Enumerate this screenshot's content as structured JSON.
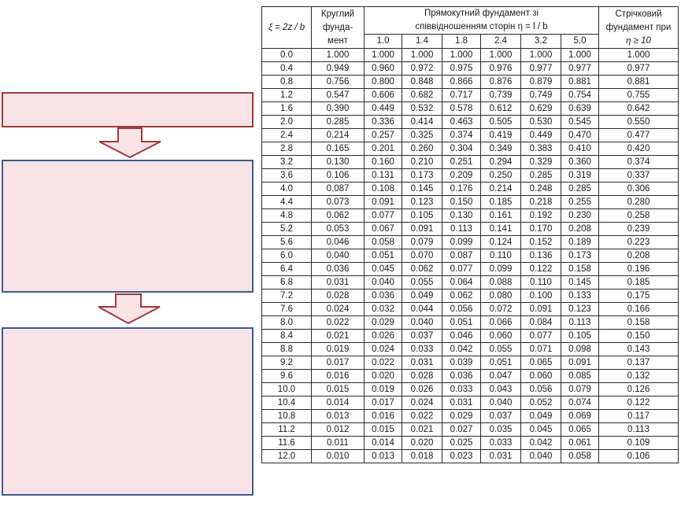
{
  "table": {
    "header": {
      "xi_label": "ξ = 2z / b",
      "round_label_line1": "Круглий",
      "round_label_line2": "фунда-",
      "round_label_line3": "мент",
      "rect_label_line1": "Прямокутний фундамент зі",
      "rect_label_line2": "співвідношенням сторін η =  l / b",
      "strip_label_line1": "Стрічковий",
      "strip_label_line2": "фундамент при",
      "strip_label_line3": "η  ≥ 10",
      "eta_values": [
        "1.0",
        "1.4",
        "1.8",
        "2.4",
        "3.2",
        "5.0"
      ]
    },
    "rows": [
      [
        "0.0",
        "1.000",
        "1.000",
        "1.000",
        "1.000",
        "1.000",
        "1.000",
        "1.000",
        "1.000"
      ],
      [
        "0.4",
        "0.949",
        "0.960",
        "0.972",
        "0.975",
        "0.976",
        "0.977",
        "0.977",
        "0.977"
      ],
      [
        "0.8",
        "0.756",
        "0.800",
        "0.848",
        "0.866",
        "0.876",
        "0.879",
        "0.881",
        "0.881"
      ],
      [
        "1.2",
        "0.547",
        "0.606",
        "0.682",
        "0.717",
        "0.739",
        "0.749",
        "0.754",
        "0.755"
      ],
      [
        "1.6",
        "0.390",
        "0.449",
        "0.532",
        "0.578",
        "0.612",
        "0.629",
        "0.639",
        "0.642"
      ],
      [
        "2.0",
        "0.285",
        "0.336",
        "0.414",
        "0.463",
        "0.505",
        "0.530",
        "0.545",
        "0.550"
      ],
      [
        "2.4",
        "0.214",
        "0.257",
        "0.325",
        "0.374",
        "0.419",
        "0.449",
        "0.470",
        "0.477"
      ],
      [
        "2.8",
        "0.165",
        "0.201",
        "0.260",
        "0.304",
        "0.349",
        "0.383",
        "0.410",
        "0.420"
      ],
      [
        "3.2",
        "0.130",
        "0.160",
        "0.210",
        "0.251",
        "0.294",
        "0.329",
        "0.360",
        "0.374"
      ],
      [
        "3.6",
        "0.106",
        "0.131",
        "0.173",
        "0.209",
        "0.250",
        "0.285",
        "0.319",
        "0.337"
      ],
      [
        "4.0",
        "0.087",
        "0.108",
        "0.145",
        "0.176",
        "0.214",
        "0.248",
        "0.285",
        "0.306"
      ],
      [
        "4.4",
        "0.073",
        "0.091",
        "0.123",
        "0.150",
        "0.185",
        "0.218",
        "0.255",
        "0.280"
      ],
      [
        "4.8",
        "0.062",
        "0.077",
        "0.105",
        "0.130",
        "0.161",
        "0.192",
        "0.230",
        "0.258"
      ],
      [
        "5.2",
        "0.053",
        "0.067",
        "0.091",
        "0.113",
        "0.141",
        "0.170",
        "0.208",
        "0.239"
      ],
      [
        "5.6",
        "0.046",
        "0.058",
        "0.079",
        "0.099",
        "0.124",
        "0.152",
        "0.189",
        "0.223"
      ],
      [
        "6.0",
        "0.040",
        "0.051",
        "0.070",
        "0.087",
        "0.110",
        "0.136",
        "0.173",
        "0.208"
      ],
      [
        "6.4",
        "0.036",
        "0.045",
        "0.062",
        "0.077",
        "0.099",
        "0.122",
        "0.158",
        "0.196"
      ],
      [
        "6.8",
        "0.031",
        "0.040",
        "0.055",
        "0.064",
        "0.088",
        "0.110",
        "0.145",
        "0.185"
      ],
      [
        "7.2",
        "0.028",
        "0.036",
        "0.049",
        "0.062",
        "0.080",
        "0.100",
        "0.133",
        "0.175"
      ],
      [
        "7.6",
        "0.024",
        "0.032",
        "0.044",
        "0.056",
        "0.072",
        "0.091",
        "0.123",
        "0.166"
      ],
      [
        "8.0",
        "0.022",
        "0.029",
        "0.040",
        "0.051",
        "0.066",
        "0.084",
        "0.113",
        "0.158"
      ],
      [
        "8.4",
        "0.021",
        "0.026",
        "0.037",
        "0.046",
        "0.060",
        "0.077",
        "0.105",
        "0.150"
      ],
      [
        "8.8",
        "0.019",
        "0.024",
        "0.033",
        "0.042",
        "0.055",
        "0.071",
        "0.098",
        "0.143"
      ],
      [
        "9.2",
        "0.017",
        "0.022",
        "0.031",
        "0.039",
        "0.051",
        "0.065",
        "0.091",
        "0.137"
      ],
      [
        "9.6",
        "0.016",
        "0.020",
        "0.028",
        "0.036",
        "0.047",
        "0.060",
        "0.085",
        "0.132"
      ],
      [
        "10.0",
        "0.015",
        "0.019",
        "0.026",
        "0.033",
        "0.043",
        "0.056",
        "0.079",
        "0.126"
      ],
      [
        "10.4",
        "0.014",
        "0.017",
        "0.024",
        "0.031",
        "0.040",
        "0.052",
        "0.074",
        "0.122"
      ],
      [
        "10.8",
        "0.013",
        "0.016",
        "0.022",
        "0.029",
        "0.037",
        "0.049",
        "0.069",
        "0.117"
      ],
      [
        "11.2",
        "0.012",
        "0.015",
        "0.021",
        "0.027",
        "0.035",
        "0.045",
        "0.065",
        "0.113"
      ],
      [
        "11.6",
        "0.011",
        "0.014",
        "0.020",
        "0.025",
        "0.033",
        "0.042",
        "0.061",
        "0.109"
      ],
      [
        "12.0",
        "0.010",
        "0.013",
        "0.018",
        "0.023",
        "0.031",
        "0.040",
        "0.058",
        "0.106"
      ]
    ]
  },
  "diagram": {
    "box_fill": "#f9e3e7",
    "box1_border": "#9e3b3b",
    "box_blue_border": "#3f5c8c",
    "arrow_fill": "#f9e3e7",
    "arrow_stroke": "#9e3b3b"
  }
}
